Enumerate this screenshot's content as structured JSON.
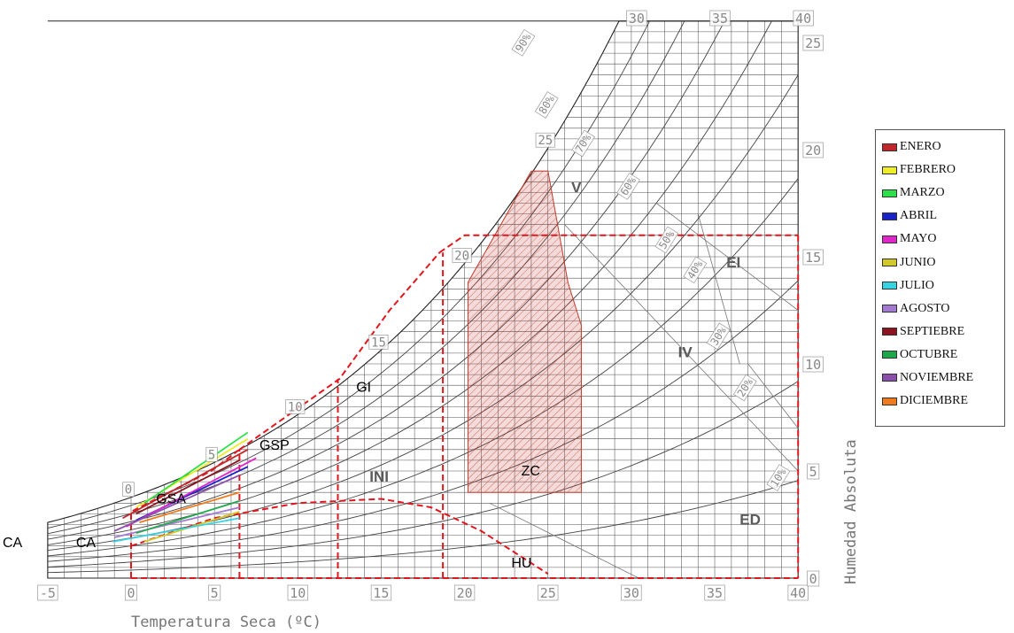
{
  "chart_data": {
    "type": "psychrometric",
    "title": "",
    "xlabel": "Temperatura Seca (ºC)",
    "ylabel": "Humedad Absoluta",
    "xlim": [
      -5,
      40
    ],
    "ylim": [
      0,
      26
    ],
    "x_ticks": [
      "-5",
      "0",
      "5",
      "10",
      "15",
      "20",
      "25",
      "30",
      "35",
      "40"
    ],
    "top_ticks": [
      "30",
      "35",
      "40"
    ],
    "y_ticks": [
      "0",
      "5",
      "10",
      "15",
      "20",
      "25"
    ],
    "wet_bulb_labels": [
      "0",
      "5",
      "10",
      "15",
      "20",
      "25"
    ],
    "rh_curves": [
      {
        "label": "90%",
        "rh": 90
      },
      {
        "label": "80%",
        "rh": 80
      },
      {
        "label": "70%",
        "rh": 70
      },
      {
        "label": "60%",
        "rh": 60
      },
      {
        "label": "50%",
        "rh": 50
      },
      {
        "label": "40%",
        "rh": 40
      },
      {
        "label": "30%",
        "rh": 30
      },
      {
        "label": "20%",
        "rh": 20
      },
      {
        "label": "10%",
        "rh": 10
      }
    ],
    "comfort_zone": {
      "label": "ZC",
      "color": "#c0392b",
      "points": [
        [
          20.2,
          4.0
        ],
        [
          27.0,
          4.0
        ],
        [
          27.0,
          11.8
        ],
        [
          26.2,
          13.8
        ],
        [
          25.0,
          19.0
        ],
        [
          24.0,
          19.0
        ],
        [
          20.2,
          13.8
        ]
      ]
    },
    "zone_boundaries": [
      {
        "id": "ca-outer",
        "points": [
          [
            0,
            0
          ],
          [
            0,
            3.1
          ],
          [
            4.8,
            5.0
          ],
          [
            6.5,
            6.0
          ]
        ]
      },
      {
        "id": "ca-inner",
        "points": [
          [
            0,
            1.5
          ],
          [
            5,
            2.8
          ],
          [
            10,
            3.5
          ],
          [
            15,
            3.7
          ],
          [
            18,
            3.3
          ],
          [
            21,
            2.2
          ],
          [
            25,
            0.2
          ]
        ]
      },
      {
        "id": "v1",
        "points": [
          [
            6.5,
            0
          ],
          [
            6.5,
            6.0
          ]
        ]
      },
      {
        "id": "gi-curve",
        "points": [
          [
            6.5,
            6.0
          ],
          [
            12.5,
            9.3
          ],
          [
            15.5,
            12.5
          ],
          [
            18.5,
            15.2
          ]
        ]
      },
      {
        "id": "v2",
        "points": [
          [
            12.4,
            0
          ],
          [
            12.4,
            9.3
          ]
        ]
      },
      {
        "id": "v3",
        "points": [
          [
            18.7,
            0
          ],
          [
            18.7,
            15.2
          ]
        ]
      },
      {
        "id": "top",
        "points": [
          [
            18.5,
            15.2
          ],
          [
            20,
            16.0
          ],
          [
            40,
            16.0
          ]
        ]
      },
      {
        "id": "right",
        "points": [
          [
            40,
            16.0
          ],
          [
            40,
            0
          ]
        ]
      },
      {
        "id": "bottom",
        "points": [
          [
            0,
            0
          ],
          [
            40,
            0
          ]
        ]
      }
    ],
    "zone_labels": [
      {
        "text": "CA",
        "x": -7.7,
        "y": 1.45,
        "bold": false,
        "color": "#000000"
      },
      {
        "text": "CA",
        "x": -3.3,
        "y": 1.45,
        "bold": false,
        "color": "#000000"
      },
      {
        "text": "GSA",
        "x": 1.5,
        "y": 3.5,
        "bold": false,
        "color": "#000000"
      },
      {
        "text": "GSP",
        "x": 7.7,
        "y": 6.0,
        "bold": false,
        "color": "#000000"
      },
      {
        "text": "GI",
        "x": 13.5,
        "y": 8.7,
        "bold": false,
        "color": "#000000"
      },
      {
        "text": "INI",
        "x": 14.3,
        "y": 4.5,
        "bold": true,
        "color": "#5a5a5a"
      },
      {
        "text": "ZC",
        "x": 23.4,
        "y": 4.8,
        "bold": false,
        "color": "#000000"
      },
      {
        "text": "HU",
        "x": 22.8,
        "y": 0.5,
        "bold": false,
        "color": "#000000"
      },
      {
        "text": "V",
        "x": 26.4,
        "y": 18.0,
        "bold": true,
        "color": "#5a5a5a"
      },
      {
        "text": "EI",
        "x": 35.7,
        "y": 14.5,
        "bold": true,
        "color": "#5a5a5a"
      },
      {
        "text": "IV",
        "x": 32.8,
        "y": 10.3,
        "bold": true,
        "color": "#5a5a5a"
      },
      {
        "text": "ED",
        "x": 36.5,
        "y": 2.5,
        "bold": true,
        "color": "#5a5a5a"
      }
    ],
    "monthly_lines": [
      {
        "name": "ENERO",
        "color": "#c0262b",
        "points": [
          [
            -0.5,
            2.8
          ],
          [
            7.0,
            6.0
          ]
        ]
      },
      {
        "name": "FEBRERO",
        "color": "#eded2a",
        "points": [
          [
            0.3,
            3.3
          ],
          [
            7.0,
            6.5
          ]
        ]
      },
      {
        "name": "MARZO",
        "color": "#2ee04a",
        "points": [
          [
            0.8,
            3.5
          ],
          [
            7.0,
            6.8
          ]
        ]
      },
      {
        "name": "ABRIL",
        "color": "#1a23c8",
        "points": [
          [
            0.3,
            2.7
          ],
          [
            7.0,
            5.2
          ]
        ]
      },
      {
        "name": "MAYO",
        "color": "#e126c8",
        "points": [
          [
            -0.3,
            2.4
          ],
          [
            7.5,
            5.6
          ]
        ]
      },
      {
        "name": "JUNIO",
        "color": "#d1c92a",
        "points": [
          [
            0.8,
            1.7
          ],
          [
            6.5,
            3.1
          ]
        ]
      },
      {
        "name": "JULIO",
        "color": "#37d3e0",
        "points": [
          [
            -1.1,
            1.7
          ],
          [
            6.5,
            2.8
          ]
        ]
      },
      {
        "name": "AGOSTO",
        "color": "#a27ad0",
        "points": [
          [
            -1.0,
            1.9
          ],
          [
            6.5,
            3.3
          ]
        ]
      },
      {
        "name": "SEPTIEBRE",
        "color": "#8b1420",
        "points": [
          [
            0.3,
            3.0
          ],
          [
            6.5,
            5.5
          ]
        ]
      },
      {
        "name": "OCTUBRE",
        "color": "#1fa84a",
        "points": [
          [
            0.3,
            2.1
          ],
          [
            6.5,
            3.6
          ]
        ]
      },
      {
        "name": "NOVIEMBRE",
        "color": "#8a4fa8",
        "points": [
          [
            -1.0,
            2.2
          ],
          [
            6.5,
            4.8
          ]
        ]
      },
      {
        "name": "DICIEMBRE",
        "color": "#f07b1f",
        "points": [
          [
            0.5,
            2.6
          ],
          [
            6.5,
            4.0
          ]
        ]
      }
    ]
  },
  "legend": {
    "items": [
      {
        "label": "ENERO",
        "color": "#c0262b"
      },
      {
        "label": "FEBRERO",
        "color": "#eded2a"
      },
      {
        "label": "MARZO",
        "color": "#2ee04a"
      },
      {
        "label": "ABRIL",
        "color": "#1a23c8"
      },
      {
        "label": "MAYO",
        "color": "#e126c8"
      },
      {
        "label": "JUNIO",
        "color": "#d1c92a"
      },
      {
        "label": "JULIO",
        "color": "#37d3e0"
      },
      {
        "label": "AGOSTO",
        "color": "#a27ad0"
      },
      {
        "label": "SEPTIEBRE",
        "color": "#8b1420"
      },
      {
        "label": "OCTUBRE",
        "color": "#1fa84a"
      },
      {
        "label": "NOVIEMBRE",
        "color": "#8a4fa8"
      },
      {
        "label": "DICIEMBRE",
        "color": "#f07b1f"
      }
    ]
  }
}
